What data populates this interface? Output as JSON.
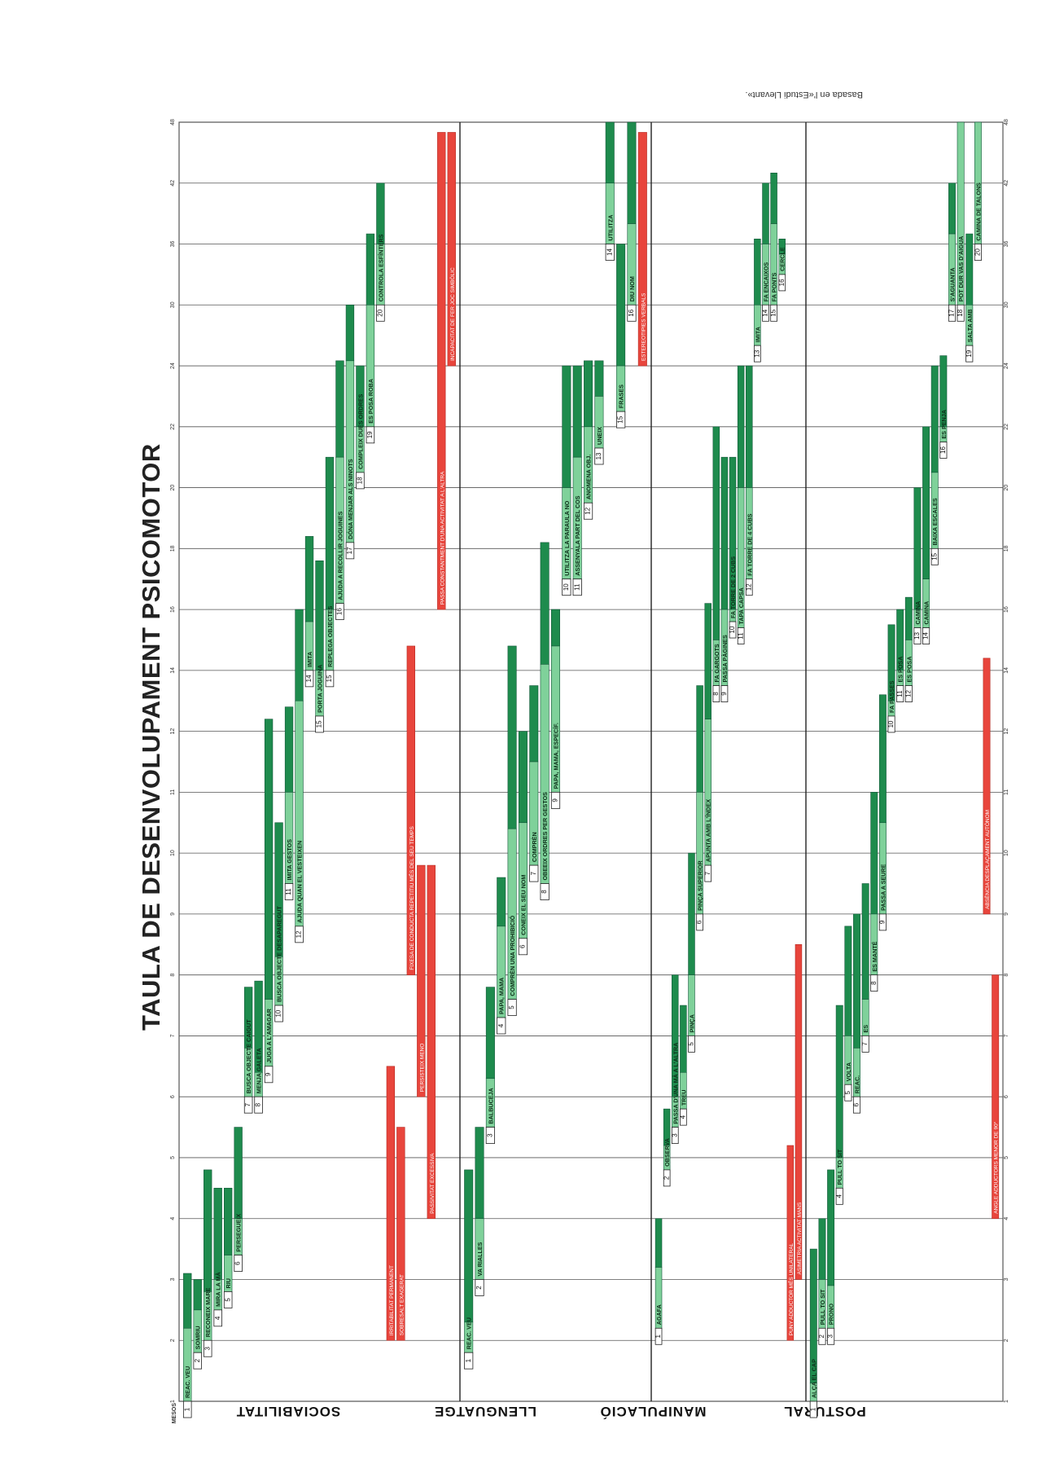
{
  "title": "TAULA DE DESENVOLUPAMENT PSICOMOTOR",
  "source": "Basada en l'«Estudi Llevant».",
  "axis_label": "MESOS",
  "categories": [
    "SOCIABILITAT",
    "LLENGUATGE",
    "MANIPULACIÓ",
    "POSTURAL"
  ],
  "colors": {
    "dark": "#1e8b4d",
    "light": "#7fd19a",
    "red": "#e8453c",
    "grid": "#555555"
  },
  "chart_data": {
    "type": "bar",
    "orientation": "vertical ranges per milestone, grouped by area",
    "ticks": [
      1,
      2,
      3,
      4,
      5,
      6,
      7,
      8,
      9,
      10,
      11,
      12,
      14,
      16,
      18,
      20,
      22,
      24,
      30,
      36,
      42,
      48
    ],
    "groups": [
      {
        "name": "SOCIABILITAT",
        "milestones": [
          {
            "n": "1",
            "label": "REAC. VEU",
            "start": 1,
            "mid": 2.2,
            "end": 3.1
          },
          {
            "n": "2",
            "label": "SOMRIU",
            "start": 1.8,
            "mid": 2.5,
            "end": 3.0
          },
          {
            "n": "3",
            "label": "RECONEIX MARE",
            "start": 2.0,
            "mid": 2.8,
            "end": 4.8
          },
          {
            "n": "4",
            "label": "MIRA LA MÀ",
            "start": 2.5,
            "mid": 3.0,
            "end": 4.5
          },
          {
            "n": "5",
            "label": "RIU",
            "start": 2.8,
            "mid": 3.4,
            "end": 4.5
          },
          {
            "n": "6",
            "label": "PERSEGUEIX",
            "start": 3.4,
            "mid": 4.0,
            "end": 5.5
          },
          {
            "n": "7",
            "label": "BUSCA OBJECTE CAIGUT",
            "start": 6.0,
            "mid": 6.8,
            "end": 7.8
          },
          {
            "n": "8",
            "label": "MENJA GALETA",
            "start": 6.0,
            "mid": 6.4,
            "end": 7.9
          },
          {
            "n": "9",
            "label": "JUGA A L'AMAGAR",
            "start": 6.5,
            "mid": 7.6,
            "end": 12.4
          },
          {
            "n": "10",
            "label": "BUSCA OBJECTE DESAPAREGUT",
            "start": 7.5,
            "mid": 8.3,
            "end": 10.5
          },
          {
            "n": "11",
            "label": "IMITA GESTOS",
            "start": 9.5,
            "mid": 11,
            "end": 12.8
          },
          {
            "n": "12",
            "label": "AJUDA QUAN EL VESTEIXEN",
            "start": 8.8,
            "mid": 13,
            "end": 16
          },
          {
            "n": "14",
            "label": "IMITA",
            "start": 14,
            "mid": 15.6,
            "end": 18.4
          },
          {
            "n": "15",
            "label": "PORTA JOGUINA",
            "start": 12.5,
            "mid": 14,
            "end": 17.6
          },
          {
            "n": "15",
            "label": "REPLEGA OBJECTES",
            "start": 14,
            "mid": 16,
            "end": 21
          },
          {
            "n": "16",
            "label": "AJUDA A RECOLLIR JOGUINES",
            "start": 16.2,
            "mid": 21,
            "end": 24.5
          },
          {
            "n": "17",
            "label": "DÓNA MENJAR ALS NINOTS",
            "start": 18.2,
            "mid": 24.5,
            "end": 30
          },
          {
            "n": "18",
            "label": "COMPLEIX DUES ORDRES",
            "start": 20.5,
            "mid": 22,
            "end": 24
          },
          {
            "n": "19",
            "label": "ES POSA ROBA",
            "start": 22,
            "mid": 30,
            "end": 37
          },
          {
            "n": "20",
            "label": "CONTROLA ESFÍNTERS",
            "start": 30,
            "mid": 36,
            "end": 42
          }
        ],
        "alerts": [
          {
            "label": "IRRITABILITAT PERMANENT",
            "start": 2,
            "end": 6.5
          },
          {
            "label": "SOBRESALT EXAGERAT",
            "start": 2,
            "end": 5.5
          },
          {
            "label": "FIXESA DE CONDUCTA REPETITIU MÉS DEL SEU TEMPS",
            "start": 8,
            "end": 14.8
          },
          {
            "label": "PERSISTEIX MENO",
            "start": 6,
            "end": 9.8
          },
          {
            "label": "PASSIVITAT EXCESSIVA",
            "start": 4,
            "end": 9.8
          },
          {
            "label": "PASSA CONSTANTMENT D'UNA ACTIVITAT A L'ALTRA",
            "start": 16,
            "end": 47
          },
          {
            "label": "INCAPACITAT DE FER JOC SIMBÒLIC",
            "start": 24,
            "end": 47
          }
        ]
      },
      {
        "name": "LLENGUATGE",
        "milestones": [
          {
            "n": "1",
            "label": "REAC. VEU",
            "start": 1.8,
            "mid": 2.3,
            "end": 4.8
          },
          {
            "n": "2",
            "label": "VA RIALLES",
            "start": 3,
            "mid": 4,
            "end": 5.5
          },
          {
            "n": "3",
            "label": "BALBUCEJA",
            "start": 5.5,
            "mid": 6.3,
            "end": 7.8
          },
          {
            "n": "4",
            "label": "PAPA, MAMA",
            "start": 7.3,
            "mid": 8.8,
            "end": 9.6
          },
          {
            "n": "5",
            "label": "COMPRÈN UNA PROHIBICIÓ",
            "start": 7.6,
            "mid": 10.4,
            "end": 14.8
          },
          {
            "n": "6",
            "label": "CONEIX EL SEU NOM",
            "start": 8.6,
            "mid": 10.5,
            "end": 12
          },
          {
            "n": "7",
            "label": "COMPRÈN",
            "start": 9.8,
            "mid": 11.5,
            "end": 13.5
          },
          {
            "n": "8",
            "label": "OBEEIX ORDRES PER GESTOS",
            "start": 9.5,
            "mid": 14.2,
            "end": 18.2
          },
          {
            "n": "9",
            "label": "PAPA, MAMA, ESPECÍF.",
            "start": 11,
            "mid": 14.8,
            "end": 16
          },
          {
            "n": "10",
            "label": "UTILITZA LA PARAULA NO",
            "start": 17,
            "mid": 20,
            "end": 24
          },
          {
            "n": "11",
            "label": "ASSENYALA PART DEL COS",
            "start": 17,
            "mid": 21,
            "end": 24
          },
          {
            "n": "12",
            "label": "ANOMENA OBJ.",
            "start": 19.5,
            "mid": 22,
            "end": 24.5
          },
          {
            "n": "13",
            "label": "UNEIX",
            "start": 21.3,
            "mid": 23,
            "end": 24.5
          },
          {
            "n": "14",
            "label": "UTILITZA",
            "start": 36,
            "mid": 42,
            "end": 48
          },
          {
            "n": "15",
            "label": "FRASES",
            "start": 22.5,
            "mid": 24,
            "end": 36
          },
          {
            "n": "16",
            "label": "DIU NOM",
            "start": 30,
            "mid": 38,
            "end": 48
          }
        ],
        "alerts": [
          {
            "label": "ESTEREOTIPIES VERBALS",
            "start": 24,
            "end": 47
          }
        ]
      },
      {
        "name": "MANIPULACIÓ",
        "milestones": [
          {
            "n": "1",
            "label": "AGAFA",
            "start": 2.2,
            "mid": 3.2,
            "end": 4
          },
          {
            "n": "2",
            "label": "OBSERVA",
            "start": 4.8,
            "mid": 5.2,
            "end": 5.8
          },
          {
            "n": "3",
            "label": "PASSA D'UNA MÀ A L'ALTRA",
            "start": 5.5,
            "mid": 6,
            "end": 8
          },
          {
            "n": "4",
            "label": "TREU",
            "start": 5.8,
            "mid": 6.4,
            "end": 7.5
          },
          {
            "n": "5",
            "label": "PINÇA",
            "start": 7,
            "mid": 8,
            "end": 10
          },
          {
            "n": "6",
            "label": "PINÇA SUPERIOR",
            "start": 9,
            "mid": 11,
            "end": 13.5
          },
          {
            "n": "7",
            "label": "APUNTA AMB L'ÍNDEX",
            "start": 9.8,
            "mid": 12.4,
            "end": 16.2
          },
          {
            "n": "8",
            "label": "FA GARGOTS",
            "start": 13.5,
            "mid": 15,
            "end": 22
          },
          {
            "n": "9",
            "label": "PASSA PÀGINES",
            "start": 13.5,
            "mid": 16,
            "end": 21
          },
          {
            "n": "10",
            "label": "FA TORRE DE 2 CUBS",
            "start": 15.6,
            "mid": 16,
            "end": 21
          },
          {
            "n": "11",
            "label": "TAPA CAPSA",
            "start": 15.4,
            "mid": 20,
            "end": 24
          },
          {
            "n": "12",
            "label": "FA TORRE DE 4 CUBS",
            "start": 17,
            "mid": 20,
            "end": 24
          },
          {
            "n": "13",
            "label": "IMITA",
            "start": 26,
            "mid": 30,
            "end": 36.5
          },
          {
            "n": "14",
            "label": "FA ENCAIXOS",
            "start": 30,
            "mid": 36,
            "end": 42
          },
          {
            "n": "15",
            "label": "FA PONTS",
            "start": 30,
            "mid": 38,
            "end": 43
          },
          {
            "n": "16",
            "label": "CERCLE",
            "start": 33,
            "mid": 35,
            "end": 36.5
          }
        ],
        "alerts": [
          {
            "label": "PUNY ADDUCTOR MÉS UNILATERAL",
            "start": 2,
            "end": 5.2
          },
          {
            "label": "ASIMETRIA ACTIVITAT MANS",
            "start": 3,
            "end": 8.5
          }
        ]
      },
      {
        "name": "POSTURAL",
        "milestones": [
          {
            "n": "1",
            "label": "ALÇA EL CAP",
            "start": 1,
            "mid": 1.3,
            "end": 3.5
          },
          {
            "n": "2",
            "label": "PULL TO SIT",
            "start": 2.2,
            "mid": 3,
            "end": 4
          },
          {
            "n": "3",
            "label": "PRONO",
            "start": 2.2,
            "mid": 2.9,
            "end": 4.8
          },
          {
            "n": "4",
            "label": "PULL TO SIT",
            "start": 4.5,
            "mid": 5,
            "end": 7.5
          },
          {
            "n": "5",
            "label": "VOLTA",
            "start": 6.2,
            "mid": 7,
            "end": 8.8
          },
          {
            "n": "6",
            "label": "REAC.",
            "start": 6,
            "mid": 6.8,
            "end": 9
          },
          {
            "n": "7",
            "label": "ES",
            "start": 7,
            "mid": 7.6,
            "end": 9.5
          },
          {
            "n": "8",
            "label": "ES MANTÉ",
            "start": 8,
            "mid": 9,
            "end": 11
          },
          {
            "n": "9",
            "label": "PASSA A SEURE",
            "start": 9,
            "mid": 10.5,
            "end": 13.2
          },
          {
            "n": "10",
            "label": "FA PASSES",
            "start": 12.5,
            "mid": 13,
            "end": 15.5
          },
          {
            "n": "11",
            "label": "ES POSA",
            "start": 13.5,
            "mid": 14,
            "end": 16
          },
          {
            "n": "12",
            "label": "ES POSA",
            "start": 13.5,
            "mid": 15,
            "end": 16.4
          },
          {
            "n": "13",
            "label": "CAMINA",
            "start": 15.4,
            "mid": 16,
            "end": 20
          },
          {
            "n": "14",
            "label": "CAMINA",
            "start": 15.4,
            "mid": 17,
            "end": 22
          },
          {
            "n": "15",
            "label": "BAIXA ESCALES",
            "start": 18,
            "mid": 20.5,
            "end": 24
          },
          {
            "n": "16",
            "label": "ES PENJA",
            "start": 21.5,
            "mid": 22,
            "end": 25
          },
          {
            "n": "17",
            "label": "S'AGUANTA",
            "start": 30,
            "mid": 37,
            "end": 42
          },
          {
            "n": "18",
            "label": "POT DUR VAS D'AIGUA",
            "start": 30,
            "mid": 48,
            "end": 48
          },
          {
            "n": "19",
            "label": "SALTA AMB",
            "start": 26,
            "mid": 30,
            "end": 37
          },
          {
            "n": "20",
            "label": "CAMINA DE TALONS",
            "start": 36,
            "mid": 48,
            "end": 48
          }
        ],
        "alerts": [
          {
            "label": "ABSÈNCIA DESPLAÇAMENT AUTÒNOM",
            "start": 9,
            "end": 14.4
          },
          {
            "label": "ANGLE ADDUCTORS MENOR DE 90°",
            "start": 4,
            "end": 8
          }
        ]
      }
    ]
  }
}
